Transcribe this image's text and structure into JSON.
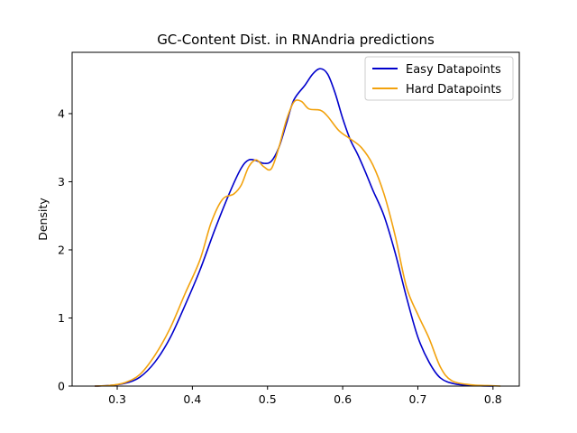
{
  "chart_data": {
    "type": "line",
    "title": "GC-Content Dist. in RNAndria predictions",
    "xlabel": "",
    "ylabel": "Density",
    "xlim": [
      0.24,
      0.835
    ],
    "ylim": [
      0,
      4.9
    ],
    "x_ticks": [
      0.3,
      0.4,
      0.5,
      0.6,
      0.7,
      0.8
    ],
    "x_tick_labels": [
      "0.3",
      "0.4",
      "0.5",
      "0.6",
      "0.7",
      "0.8"
    ],
    "y_ticks": [
      0,
      1,
      2,
      3,
      4
    ],
    "y_tick_labels": [
      "0",
      "1",
      "2",
      "3",
      "4"
    ],
    "grid": false,
    "legend_position": "top-right",
    "series": [
      {
        "name": "Easy Datapoints",
        "color": "#0000cc",
        "points": [
          [
            0.27,
            0.0
          ],
          [
            0.29,
            0.01
          ],
          [
            0.31,
            0.04
          ],
          [
            0.33,
            0.13
          ],
          [
            0.35,
            0.35
          ],
          [
            0.37,
            0.7
          ],
          [
            0.39,
            1.18
          ],
          [
            0.41,
            1.7
          ],
          [
            0.43,
            2.3
          ],
          [
            0.45,
            2.85
          ],
          [
            0.465,
            3.2
          ],
          [
            0.475,
            3.32
          ],
          [
            0.485,
            3.31
          ],
          [
            0.495,
            3.27
          ],
          [
            0.505,
            3.3
          ],
          [
            0.515,
            3.5
          ],
          [
            0.525,
            3.85
          ],
          [
            0.535,
            4.2
          ],
          [
            0.55,
            4.42
          ],
          [
            0.56,
            4.58
          ],
          [
            0.57,
            4.66
          ],
          [
            0.58,
            4.58
          ],
          [
            0.59,
            4.3
          ],
          [
            0.6,
            3.93
          ],
          [
            0.61,
            3.62
          ],
          [
            0.62,
            3.4
          ],
          [
            0.63,
            3.15
          ],
          [
            0.64,
            2.88
          ],
          [
            0.655,
            2.5
          ],
          [
            0.67,
            1.95
          ],
          [
            0.685,
            1.3
          ],
          [
            0.7,
            0.72
          ],
          [
            0.715,
            0.35
          ],
          [
            0.73,
            0.12
          ],
          [
            0.75,
            0.03
          ],
          [
            0.78,
            0.005
          ],
          [
            0.8,
            0.0
          ]
        ]
      },
      {
        "name": "Hard Datapoints",
        "color": "#f2a20d",
        "points": [
          [
            0.27,
            0.0
          ],
          [
            0.29,
            0.01
          ],
          [
            0.31,
            0.05
          ],
          [
            0.33,
            0.17
          ],
          [
            0.35,
            0.45
          ],
          [
            0.37,
            0.84
          ],
          [
            0.39,
            1.35
          ],
          [
            0.41,
            1.85
          ],
          [
            0.425,
            2.4
          ],
          [
            0.44,
            2.74
          ],
          [
            0.455,
            2.82
          ],
          [
            0.465,
            2.95
          ],
          [
            0.475,
            3.22
          ],
          [
            0.485,
            3.32
          ],
          [
            0.495,
            3.22
          ],
          [
            0.505,
            3.19
          ],
          [
            0.515,
            3.5
          ],
          [
            0.525,
            3.9
          ],
          [
            0.535,
            4.17
          ],
          [
            0.545,
            4.18
          ],
          [
            0.555,
            4.07
          ],
          [
            0.57,
            4.05
          ],
          [
            0.58,
            3.96
          ],
          [
            0.595,
            3.75
          ],
          [
            0.61,
            3.63
          ],
          [
            0.625,
            3.5
          ],
          [
            0.64,
            3.25
          ],
          [
            0.655,
            2.82
          ],
          [
            0.67,
            2.2
          ],
          [
            0.685,
            1.45
          ],
          [
            0.7,
            1.05
          ],
          [
            0.715,
            0.7
          ],
          [
            0.73,
            0.28
          ],
          [
            0.745,
            0.08
          ],
          [
            0.77,
            0.02
          ],
          [
            0.8,
            0.005
          ],
          [
            0.81,
            0.0
          ]
        ]
      }
    ]
  }
}
